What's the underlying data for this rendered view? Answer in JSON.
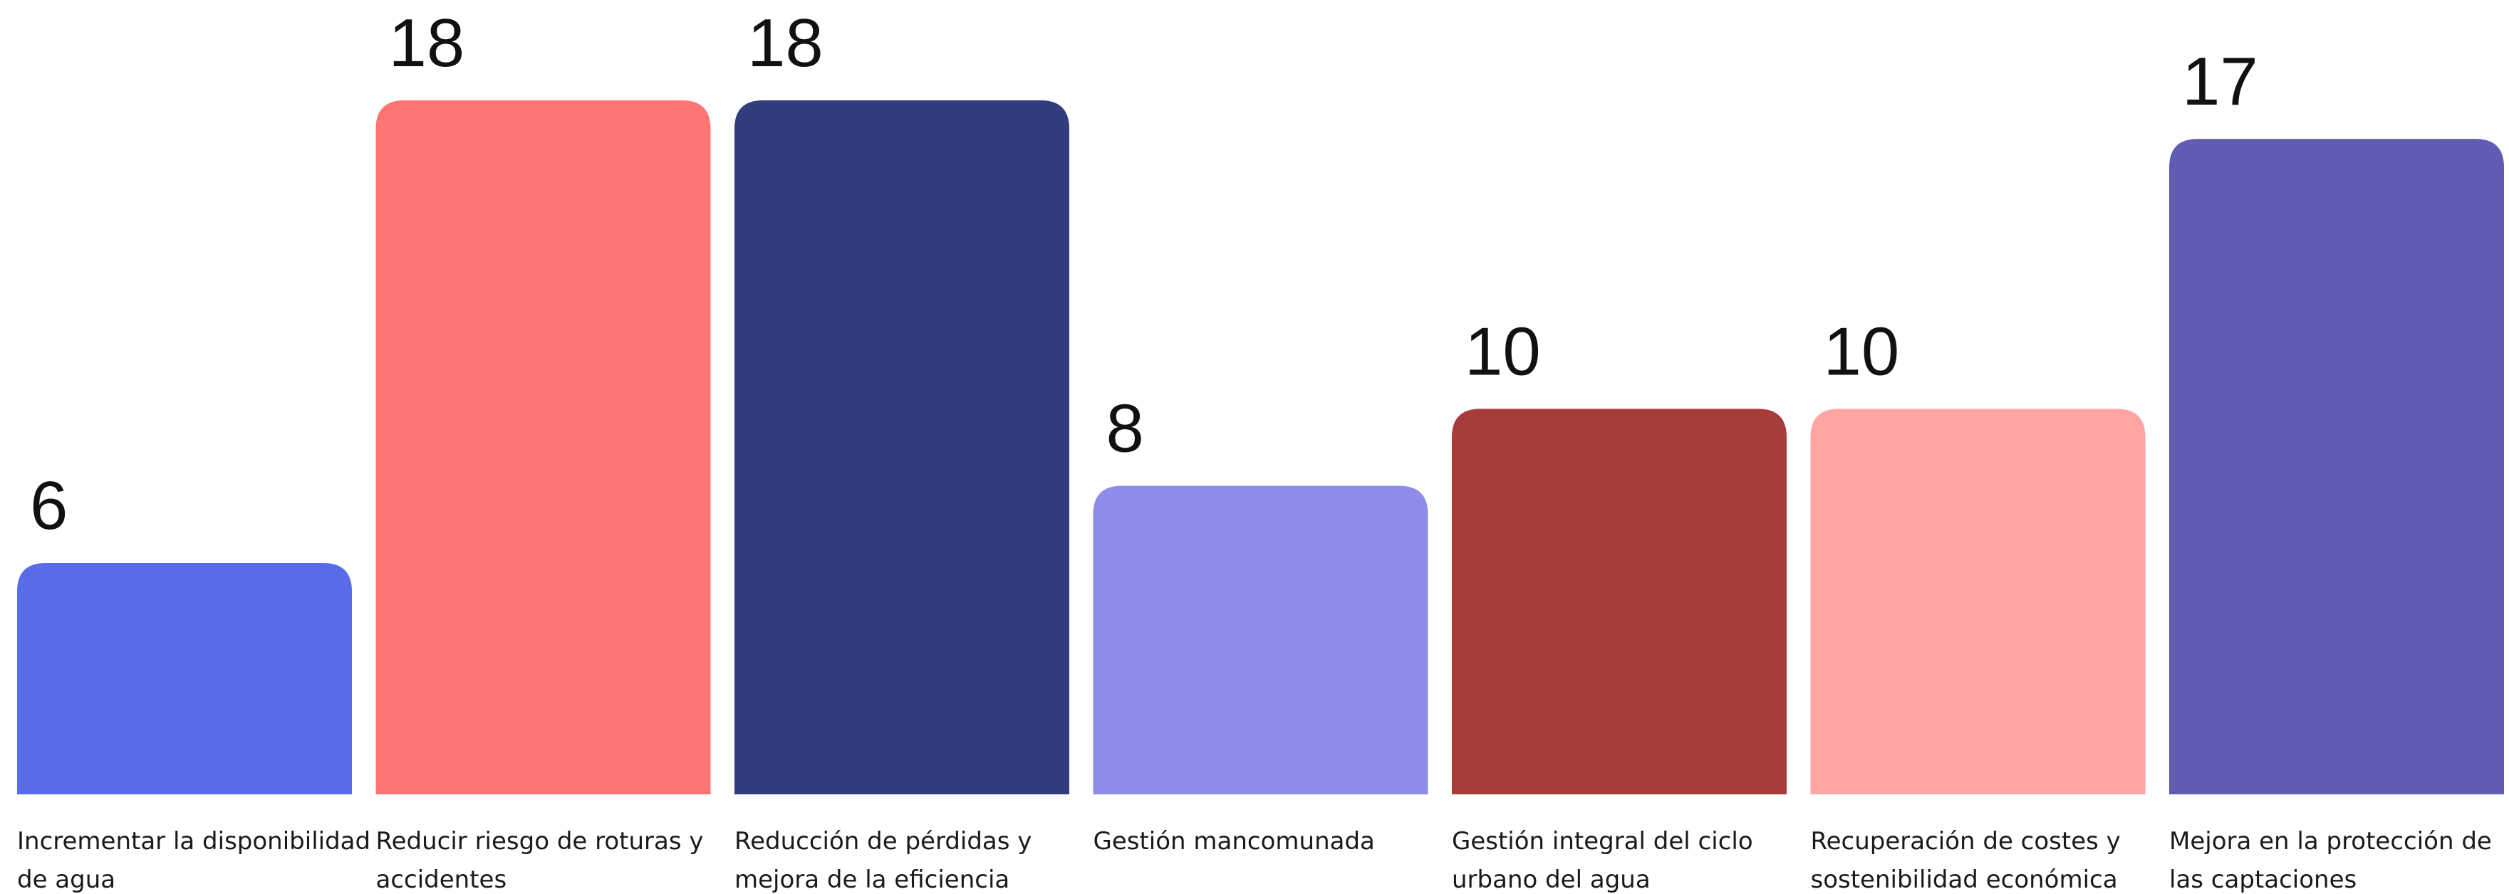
{
  "chart_data": {
    "type": "bar",
    "categories": [
      [
        "Incrementar la disponibilidad",
        "de agua"
      ],
      [
        "Reducir riesgo de roturas y",
        "accidentes"
      ],
      [
        "Reducción de pérdidas y",
        "mejora de la eficiencia"
      ],
      [
        "Gestión mancomunada"
      ],
      [
        "Gestión integral del ciclo",
        "urbano del agua"
      ],
      [
        "Recuperación de costes y",
        "sostenibilidad económica"
      ],
      [
        "Mejora en la protección de",
        "las captaciones"
      ]
    ],
    "values": [
      6,
      18,
      18,
      8,
      10,
      10,
      17
    ],
    "colors": [
      "#596be6",
      "#ff7573",
      "#333c7e",
      "#8d8ce8",
      "#a83c3b",
      "#ffa5a4",
      "#5f5cb2"
    ],
    "ylim": [
      0,
      18
    ],
    "grid": false,
    "legend": "none"
  }
}
